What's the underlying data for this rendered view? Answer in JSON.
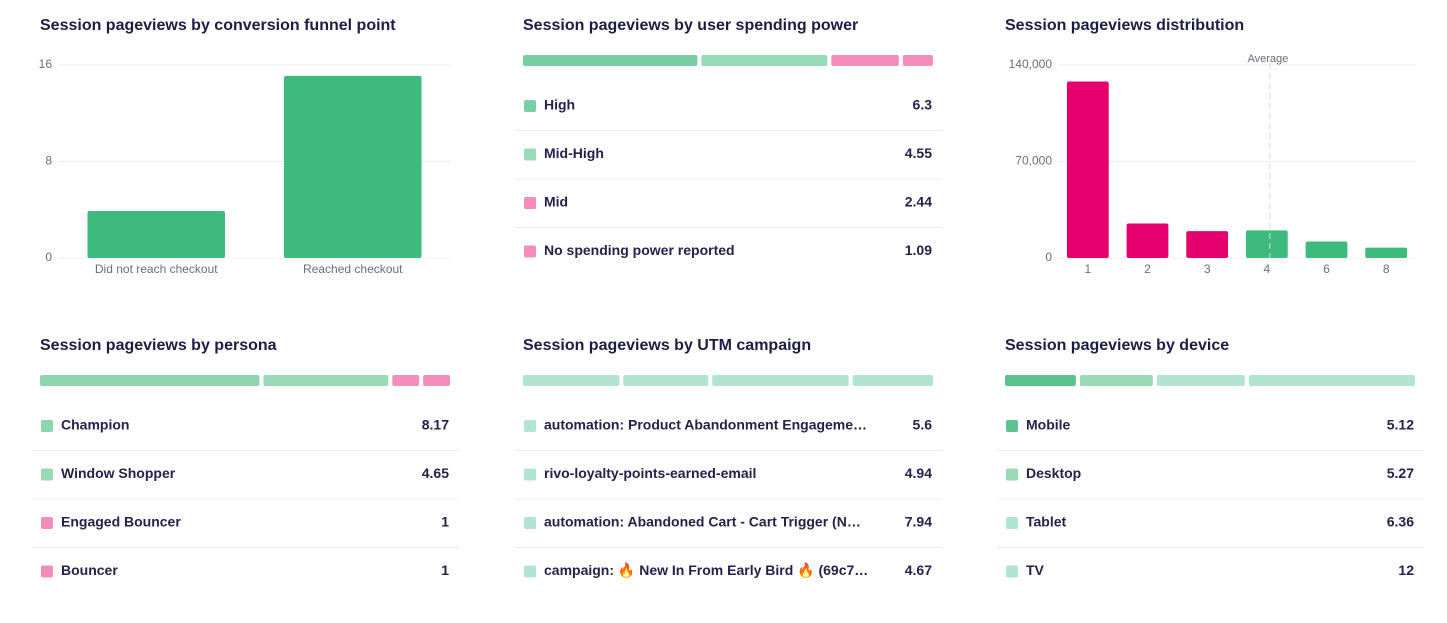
{
  "chart_data": [
    {
      "type": "bar",
      "title": "Session pageviews by conversion funnel point",
      "categories": [
        "Did not reach checkout",
        "Reached checkout"
      ],
      "values": [
        3.9,
        15.1
      ],
      "colors": [
        "#3fba7d",
        "#3fba7d"
      ],
      "ylim": [
        0,
        16
      ],
      "yticks": [
        0,
        8,
        16
      ],
      "grid": true
    },
    {
      "type": "breakdown",
      "title": "Session pageviews by user spending power",
      "categories": [
        "High",
        "Mid-High",
        "Mid",
        "No spending power reported"
      ],
      "values": [
        6.3,
        4.55,
        2.44,
        1.09
      ],
      "colors": [
        "#79cfa3",
        "#97dbb8",
        "#f48cbc",
        "#f48cbc"
      ]
    },
    {
      "type": "bar",
      "title": "Session pageviews distribution",
      "categories": [
        "1",
        "2",
        "3",
        "4",
        "6",
        "8"
      ],
      "values": [
        128000,
        25000,
        19500,
        20000,
        12000,
        7500
      ],
      "colors": [
        "#e5006d",
        "#e5006d",
        "#e5006d",
        "#3fba7d",
        "#3fba7d",
        "#3fba7d"
      ],
      "ylim": [
        0,
        140000
      ],
      "yticks": [
        0,
        {
          "value": 70000,
          "label": "70,000"
        },
        {
          "value": 140000,
          "label": "140,000"
        }
      ],
      "grid": true,
      "average": {
        "label": "Average",
        "category": "4"
      }
    },
    {
      "type": "breakdown",
      "title": "Session pageviews by persona",
      "categories": [
        "Champion",
        "Window Shopper",
        "Engaged Bouncer",
        "Bouncer"
      ],
      "values": [
        8.17,
        4.65,
        1,
        1
      ],
      "colors": [
        "#8fd6b0",
        "#9ad8b6",
        "#f48cbc",
        "#f48cbc"
      ]
    },
    {
      "type": "breakdown",
      "title": "Session pageviews by UTM campaign",
      "categories": [
        "automation: Product Abandonment Engageme…",
        "rivo-loyalty-points-earned-email",
        "automation: Abandoned Cart - Cart Trigger (N…",
        "campaign: 🔥 New In From Early Bird 🔥 (69c7…"
      ],
      "values": [
        5.6,
        4.94,
        7.94,
        4.67
      ],
      "colors": [
        "#b2e5cf",
        "#b2e5cf",
        "#b2e5cf",
        "#b2e5cf"
      ]
    },
    {
      "type": "breakdown",
      "title": "Session pageviews by device",
      "categories": [
        "Mobile",
        "Desktop",
        "Tablet",
        "TV"
      ],
      "values": [
        5.12,
        5.27,
        6.36,
        12
      ],
      "colors": [
        "#5ec28f",
        "#9ad8b6",
        "#b2e5cf",
        "#b2e5cf"
      ]
    }
  ]
}
